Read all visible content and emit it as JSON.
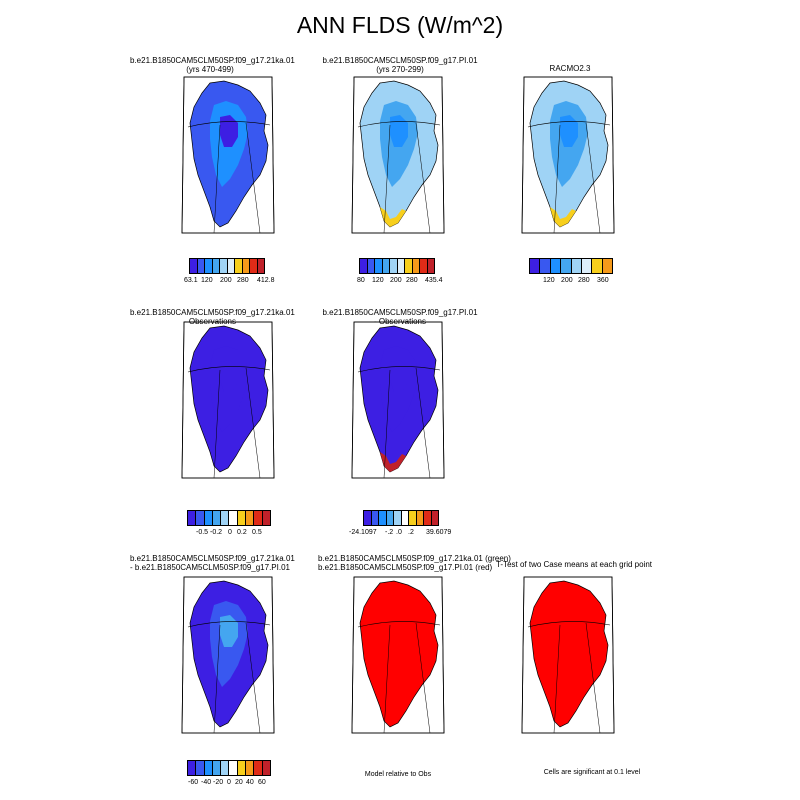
{
  "title": "ANN FLDS (W/m^2)",
  "palette": {
    "abs": [
      "#3d1fe3",
      "#3958f0",
      "#1e90ff",
      "#44a6f0",
      "#9fd3f5",
      "#ddeefa",
      "#f7cf1d",
      "#f59a1a",
      "#e02b17",
      "#c0212a"
    ],
    "diff": [
      "#3d1fe3",
      "#3958f0",
      "#1e90ff",
      "#44a6f0",
      "#9fd3f5",
      "#ffffff",
      "#f7cf1d",
      "#f59a1a",
      "#e02b17",
      "#c0212a"
    ],
    "significance_red": "#ff0000"
  },
  "panels": [
    {
      "id": "p1",
      "caption": [
        "b.e21.B1850CAM5CLM50SP.f09_g17.21ka.01",
        "(yrs 470-499)"
      ],
      "labels": [
        "63.1",
        "120",
        "200",
        "280",
        "412.8"
      ]
    },
    {
      "id": "p2",
      "caption": [
        "b.e21.B1850CAM5CLM50SP.f09_g17.PI.01",
        "(yrs 270-299)"
      ],
      "labels": [
        "80",
        "120",
        "200",
        "280",
        "435.4"
      ]
    },
    {
      "id": "p3",
      "caption": [
        "RACMO2.3"
      ],
      "labels": [
        "120",
        "200",
        "280",
        "360"
      ]
    },
    {
      "id": "p4",
      "caption": [
        "b.e21.B1850CAM5CLM50SP.f09_g17.21ka.01",
        "- Observations"
      ],
      "labels": [
        "-0.5",
        "-0.2",
        "0",
        "0.2",
        "0.5"
      ]
    },
    {
      "id": "p5",
      "caption": [
        "b.e21.B1850CAM5CLM50SP.f09_g17.PI.01",
        "- Observations"
      ],
      "labels": [
        "-24.1097",
        "-.2",
        ".0",
        ".2",
        "39.6079"
      ]
    },
    {
      "id": "p7",
      "caption": [
        "b.e21.B1850CAM5CLM50SP.f09_g17.21ka.01",
        "- b.e21.B1850CAM5CLM50SP.f09_g17.PI.01"
      ],
      "labels": [
        "-60",
        "-40",
        "-20",
        "0",
        "20",
        "40",
        "60"
      ]
    },
    {
      "id": "p8",
      "caption": [
        "b.e21.B1850CAM5CLM50SP.f09_g17.21ka.01 (green)",
        "b.e21.B1850CAM5CLM50SP.f09_g17.PI.01 (red)"
      ],
      "note": "Model relative to Obs"
    },
    {
      "id": "p9",
      "caption": [
        "T-Test of two Case means at each grid point"
      ],
      "note": "Cells are significant at 0.1 level"
    }
  ]
}
